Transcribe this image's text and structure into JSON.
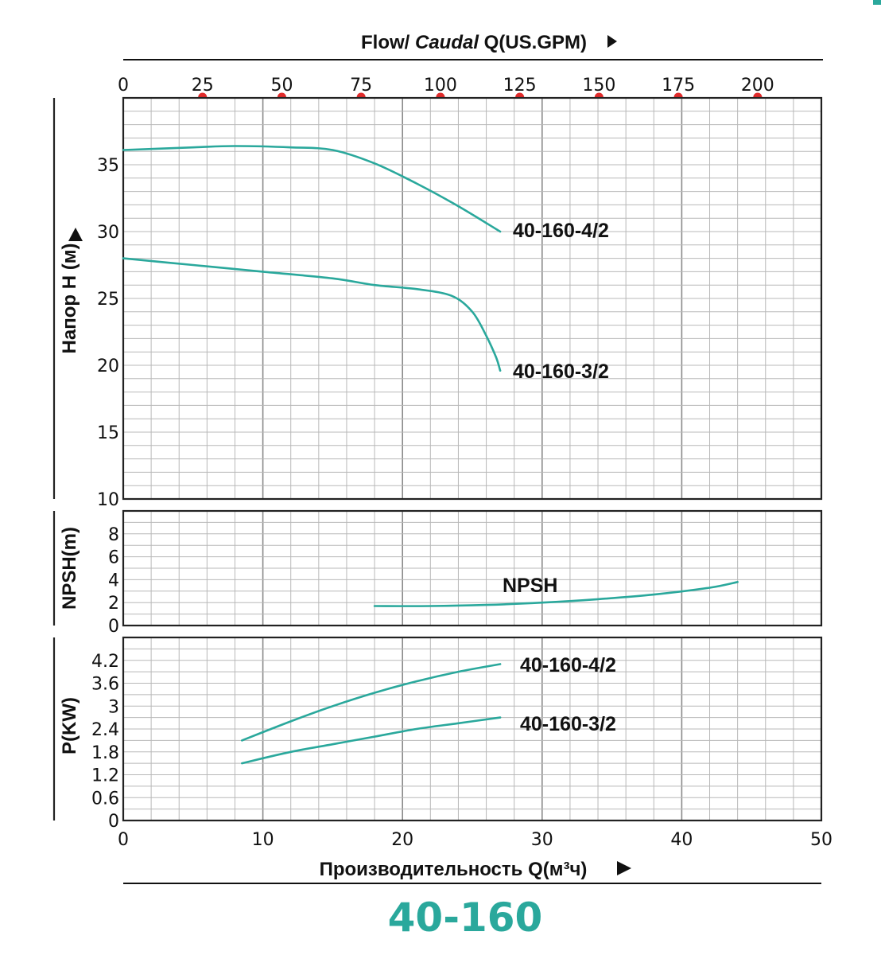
{
  "top_axis": {
    "title_prefix": "Flow/ ",
    "title_italic": "Caudal",
    "title_suffix": " Q(US.GPM)",
    "ticks": [
      "0",
      "25",
      "50",
      "75",
      "100",
      "125",
      "150",
      "175",
      "200"
    ],
    "tick_values": [
      0,
      25,
      50,
      75,
      100,
      125,
      150,
      175,
      200
    ],
    "marker_color": "#e02b2b"
  },
  "model_title": "40-160",
  "accent_color": "#2aa89c",
  "chart_data": [
    {
      "type": "line",
      "ylabel": "Напор H (м)",
      "ylim": [
        10,
        40
      ],
      "yticks": [
        "10",
        "15",
        "20",
        "25",
        "30",
        "35"
      ],
      "xlim": [
        0,
        50
      ],
      "series": [
        {
          "name": "40-160-4/2",
          "x": [
            0,
            5,
            8,
            12,
            15,
            18,
            21,
            24,
            27
          ],
          "y": [
            36.1,
            36.3,
            36.4,
            36.3,
            36.1,
            35.1,
            33.6,
            31.9,
            30.0
          ]
        },
        {
          "name": "40-160-3/2",
          "x": [
            0,
            5,
            10,
            15,
            18,
            21,
            23.5,
            25,
            26,
            26.7,
            27
          ],
          "y": [
            28.0,
            27.5,
            27.0,
            26.5,
            26.0,
            25.7,
            25.2,
            24.0,
            22.2,
            20.6,
            19.6
          ]
        }
      ]
    },
    {
      "type": "line",
      "ylabel": "NPSH(m)",
      "ylim": [
        0,
        10
      ],
      "yticks": [
        "0",
        "2",
        "4",
        "6",
        "8"
      ],
      "xlim": [
        0,
        50
      ],
      "series": [
        {
          "name": "NPSH",
          "x": [
            18,
            22,
            26,
            30,
            34,
            38,
            42,
            44
          ],
          "y": [
            1.7,
            1.7,
            1.8,
            2.0,
            2.3,
            2.7,
            3.3,
            3.8
          ]
        }
      ]
    },
    {
      "type": "line",
      "ylabel": "P(KW)",
      "xlabel": "Производительность Q(м³ч)",
      "ylim": [
        0,
        4.8
      ],
      "yticks": [
        "0",
        "0.6",
        "1.2",
        "1.8",
        "2.4",
        "3",
        "3.6",
        "4.2"
      ],
      "xlim": [
        0,
        50
      ],
      "xticks": [
        "0",
        "10",
        "20",
        "30",
        "40",
        "50"
      ],
      "series": [
        {
          "name": "40-160-4/2",
          "x": [
            8.5,
            12,
            15,
            18,
            21,
            24,
            27
          ],
          "y": [
            2.1,
            2.6,
            3.0,
            3.35,
            3.65,
            3.9,
            4.1
          ]
        },
        {
          "name": "40-160-3/2",
          "x": [
            8.5,
            12,
            15,
            18,
            21,
            24,
            27
          ],
          "y": [
            1.5,
            1.8,
            2.0,
            2.2,
            2.4,
            2.55,
            2.7
          ]
        }
      ]
    }
  ]
}
